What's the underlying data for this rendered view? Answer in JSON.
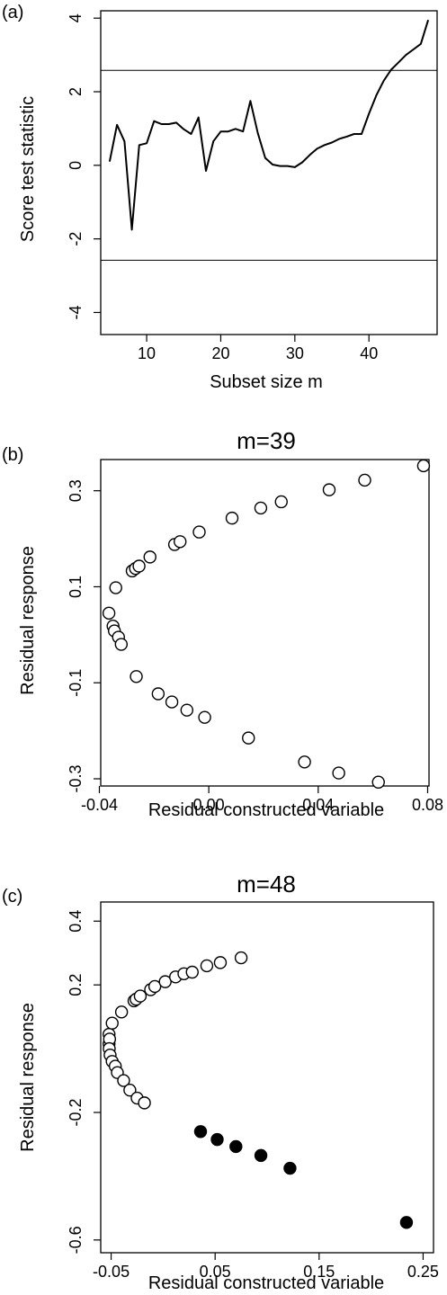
{
  "chart_data": [
    {
      "type": "line",
      "panel_label": "(a)",
      "title": "",
      "xlabel": "Subset size m",
      "ylabel": "Score test statistic",
      "xlim": [
        3.8,
        49.2
      ],
      "ylim": [
        -4.6,
        4.2
      ],
      "xticks": [
        10,
        20,
        30,
        40
      ],
      "yticks": [
        -4,
        -2,
        0,
        2,
        4
      ],
      "hlines": [
        2.58,
        -2.58
      ],
      "grid": false,
      "series": [
        {
          "x": [
            5,
            6,
            7,
            8,
            9,
            10,
            11,
            12,
            13,
            14,
            15,
            16,
            17,
            18,
            19,
            20,
            21,
            22,
            23,
            24,
            25,
            26,
            27,
            28,
            29,
            30,
            31,
            32,
            33,
            34,
            35,
            36,
            37,
            38,
            39,
            40,
            41,
            42,
            43,
            44,
            45,
            46,
            47,
            48
          ],
          "y": [
            0.1,
            1.1,
            0.65,
            -1.75,
            0.55,
            0.6,
            1.2,
            1.12,
            1.12,
            1.16,
            0.98,
            0.85,
            1.3,
            -0.15,
            0.65,
            0.92,
            0.92,
            0.99,
            0.92,
            1.75,
            0.88,
            0.2,
            0.02,
            -0.02,
            -0.02,
            -0.05,
            0.08,
            0.28,
            0.45,
            0.55,
            0.62,
            0.72,
            0.78,
            0.85,
            0.85,
            1.4,
            1.9,
            2.3,
            2.6,
            2.8,
            3.0,
            3.15,
            3.3,
            3.95
          ]
        }
      ]
    },
    {
      "type": "scatter",
      "panel_label": "(b)",
      "title": "m=39",
      "xlabel": "Residual constructed variable",
      "ylabel": "Residual response",
      "xlim": [
        -0.0395,
        0.0805
      ],
      "ylim": [
        -0.315,
        0.365
      ],
      "xticks": [
        -0.04,
        0.0,
        0.04,
        0.08
      ],
      "xtick_labels": [
        "-0.04",
        "0.00",
        "0.04",
        "0.08"
      ],
      "yticks": [
        -0.3,
        -0.1,
        0.1,
        0.3
      ],
      "ytick_labels": [
        "-0.3",
        "-0.1",
        "0.1",
        "0.3"
      ],
      "grid": false,
      "series": [
        {
          "marker": "open-circle",
          "points": [
            [
              -0.0365,
              0.045
            ],
            [
              -0.035,
              0.018
            ],
            [
              -0.0345,
              0.008
            ],
            [
              -0.033,
              -0.005
            ],
            [
              -0.032,
              -0.02
            ],
            [
              -0.034,
              0.098
            ],
            [
              -0.028,
              0.133
            ],
            [
              -0.0268,
              0.138
            ],
            [
              -0.0255,
              0.143
            ],
            [
              -0.0215,
              0.162
            ],
            [
              -0.0125,
              0.188
            ],
            [
              -0.0105,
              0.194
            ],
            [
              -0.0035,
              0.214
            ],
            [
              0.0085,
              0.243
            ],
            [
              0.019,
              0.264
            ],
            [
              0.0265,
              0.277
            ],
            [
              0.044,
              0.302
            ],
            [
              0.057,
              0.322
            ],
            [
              0.0785,
              0.352
            ],
            [
              -0.0265,
              -0.087
            ],
            [
              -0.0185,
              -0.123
            ],
            [
              -0.0135,
              -0.14
            ],
            [
              -0.008,
              -0.157
            ],
            [
              -0.0015,
              -0.172
            ],
            [
              0.0145,
              -0.215
            ],
            [
              0.035,
              -0.265
            ],
            [
              0.0475,
              -0.288
            ],
            [
              0.062,
              -0.307
            ]
          ]
        }
      ]
    },
    {
      "type": "scatter",
      "panel_label": "(c)",
      "title": "m=48",
      "xlabel": "Residual constructed variable",
      "ylabel": "Residual response",
      "xlim": [
        -0.06,
        0.26
      ],
      "ylim": [
        -0.64,
        0.46
      ],
      "xticks": [
        -0.05,
        0.05,
        0.15,
        0.25
      ],
      "xtick_labels": [
        "-0.05",
        "0.05",
        "0.15",
        "0.25"
      ],
      "yticks": [
        -0.6,
        -0.2,
        0.2,
        0.4
      ],
      "ytick_labels": [
        "-0.6",
        "-0.2",
        "0.2",
        "0.4"
      ],
      "grid": false,
      "series": [
        {
          "marker": "open-circle",
          "points": [
            [
              -0.052,
              0.045
            ],
            [
              -0.052,
              0.015
            ],
            [
              -0.0515,
              0.03
            ],
            [
              -0.0518,
              0.0
            ],
            [
              -0.049,
              0.08
            ],
            [
              -0.051,
              -0.02
            ],
            [
              -0.049,
              -0.04
            ],
            [
              -0.046,
              -0.055
            ],
            [
              -0.044,
              -0.075
            ],
            [
              -0.038,
              -0.1
            ],
            [
              -0.032,
              -0.13
            ],
            [
              -0.025,
              -0.155
            ],
            [
              -0.018,
              -0.17
            ],
            [
              -0.04,
              0.115
            ],
            [
              -0.028,
              0.15
            ],
            [
              -0.026,
              0.155
            ],
            [
              -0.022,
              0.165
            ],
            [
              -0.012,
              0.185
            ],
            [
              -0.008,
              0.195
            ],
            [
              0.002,
              0.21
            ],
            [
              0.012,
              0.225
            ],
            [
              0.02,
              0.235
            ],
            [
              0.028,
              0.24
            ],
            [
              0.042,
              0.26
            ],
            [
              0.055,
              0.27
            ],
            [
              0.075,
              0.285
            ]
          ]
        },
        {
          "marker": "filled-circle",
          "points": [
            [
              0.036,
              -0.26
            ],
            [
              0.052,
              -0.285
            ],
            [
              0.07,
              -0.307
            ],
            [
              0.094,
              -0.335
            ],
            [
              0.122,
              -0.375
            ],
            [
              0.234,
              -0.545
            ]
          ]
        }
      ]
    }
  ]
}
